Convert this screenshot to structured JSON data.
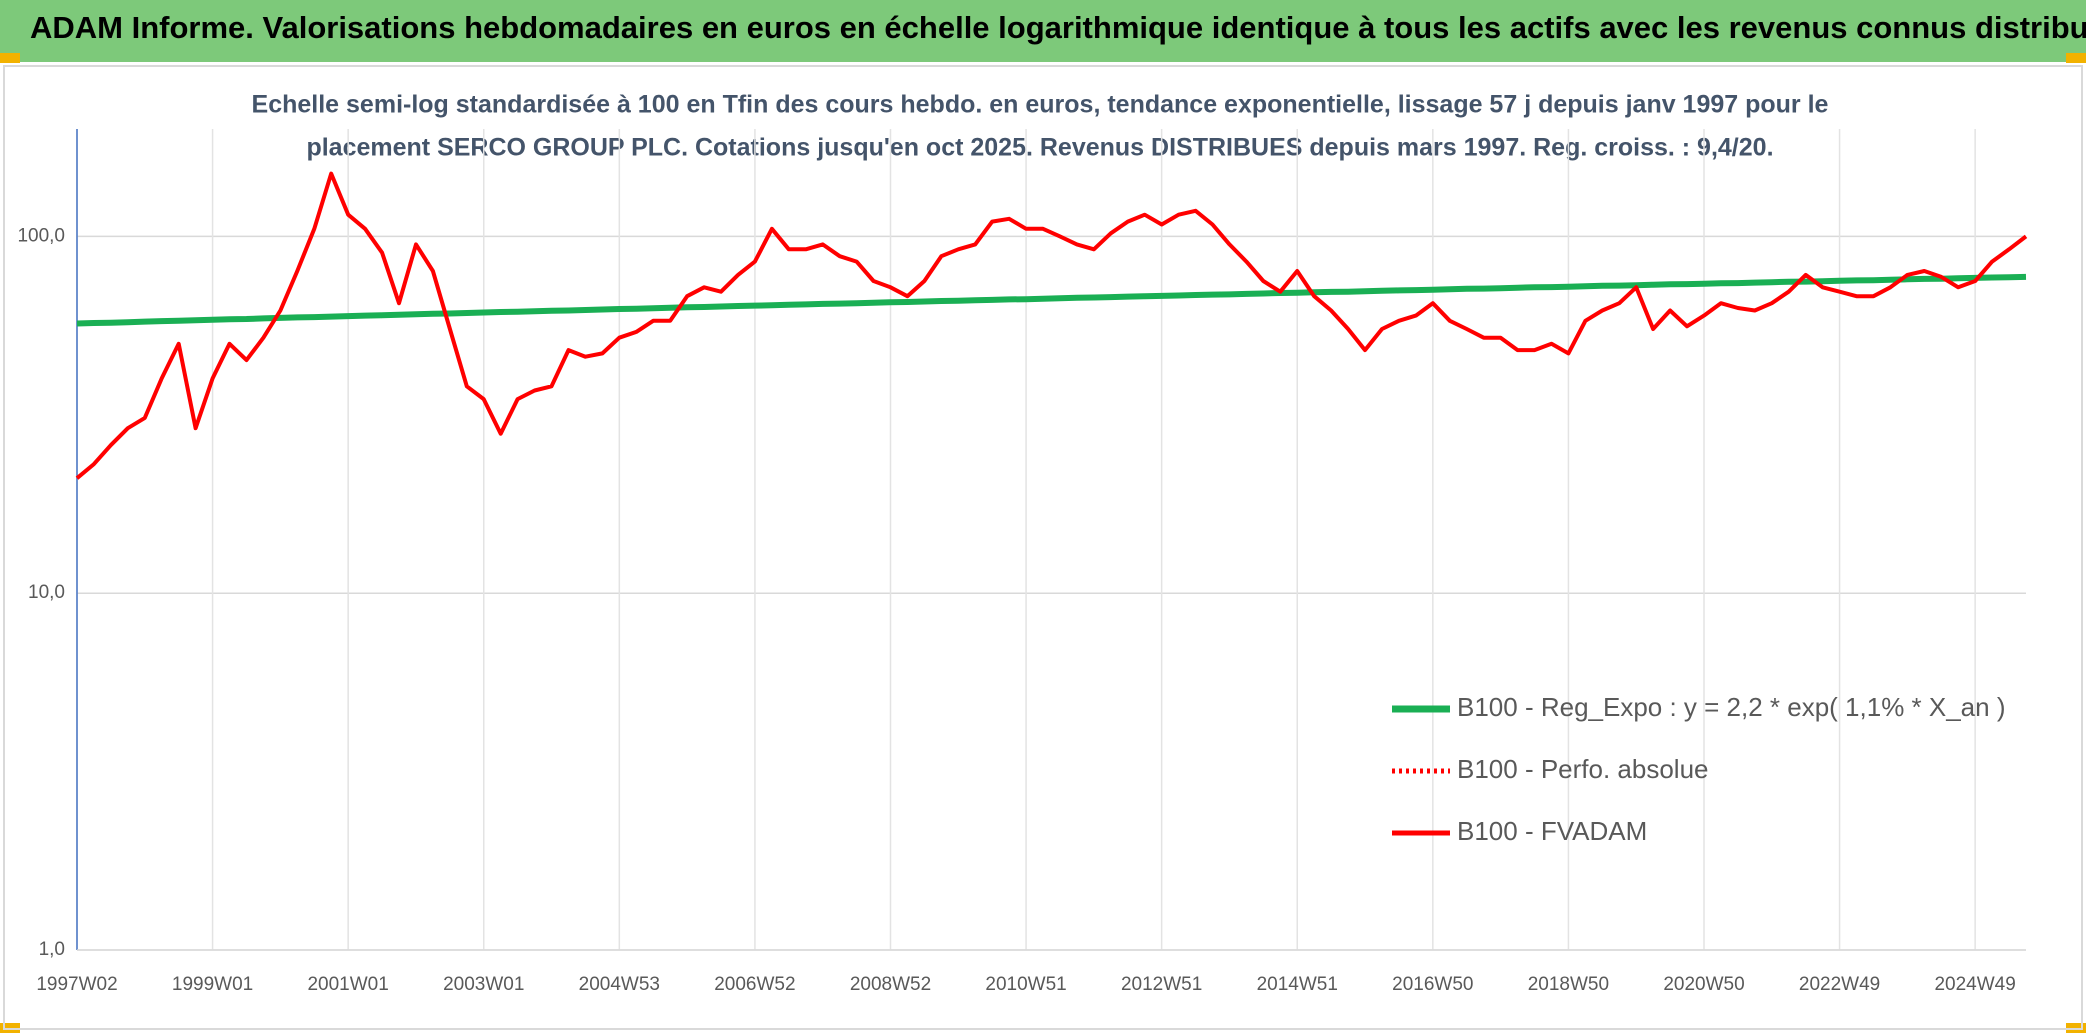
{
  "chart_data": {
    "type": "line",
    "title": "ADAM Informe. Valorisations hebdomadaires en euros en échelle logarithmique identique à tous les actifs avec les revenus connus distribués",
    "subtitle": [
      "Echelle semi-log standardisée à 100 en Tfin des cours hebdo. en euros, tendance exponentielle, lissage 57 j depuis janv 1997 pour le",
      "placement SERCO GROUP PLC. Cotations jusqu'en oct 2025. Revenus DISTRIBUES depuis mars 1997. Reg. croiss. : 9,4/20."
    ],
    "log_scale": true,
    "grid": true,
    "ylim": [
      1,
      200
    ],
    "yticks": [
      {
        "value": 1,
        "label": "1,0"
      },
      {
        "value": 10,
        "label": "10,0"
      },
      {
        "value": 100,
        "label": "100,0"
      }
    ],
    "categories": [
      "1997W02",
      null,
      null,
      null,
      null,
      null,
      null,
      null,
      "1999W01",
      null,
      null,
      null,
      null,
      null,
      null,
      null,
      "2001W01",
      null,
      null,
      null,
      null,
      null,
      null,
      null,
      "2003W01",
      null,
      null,
      null,
      null,
      null,
      null,
      null,
      "2004W53",
      null,
      null,
      null,
      null,
      null,
      null,
      null,
      "2006W52",
      null,
      null,
      null,
      null,
      null,
      null,
      null,
      "2008W52",
      null,
      null,
      null,
      null,
      null,
      null,
      null,
      "2010W51",
      null,
      null,
      null,
      null,
      null,
      null,
      null,
      "2012W51",
      null,
      null,
      null,
      null,
      null,
      null,
      null,
      "2014W51",
      null,
      null,
      null,
      null,
      null,
      null,
      null,
      "2016W50",
      null,
      null,
      null,
      null,
      null,
      null,
      null,
      "2018W50",
      null,
      null,
      null,
      null,
      null,
      null,
      null,
      "2020W50",
      null,
      null,
      null,
      null,
      null,
      null,
      null,
      "2022W49",
      null,
      null,
      null,
      null,
      null,
      null,
      null,
      "2024W49",
      null,
      null,
      null
    ],
    "series": [
      {
        "name": "B100 - Reg_Expo : y = 2,2 * exp( 1,1% *  X_an )",
        "color": "#1aaf54",
        "style": "solid",
        "width": 6,
        "values": [
          57.0,
          57.2,
          57.3,
          57.5,
          57.7,
          57.9,
          58.0,
          58.2,
          58.4,
          58.6,
          58.7,
          58.9,
          59.1,
          59.3,
          59.4,
          59.6,
          59.8,
          60.0,
          60.1,
          60.3,
          60.5,
          60.7,
          60.8,
          61.0,
          61.2,
          61.4,
          61.5,
          61.7,
          61.9,
          62.0,
          62.2,
          62.4,
          62.6,
          62.7,
          62.9,
          63.1,
          63.3,
          63.4,
          63.6,
          63.8,
          64.0,
          64.1,
          64.3,
          64.5,
          64.7,
          64.8,
          65.0,
          65.2,
          65.4,
          65.5,
          65.7,
          65.9,
          66.0,
          66.2,
          66.4,
          66.6,
          66.7,
          66.9,
          67.1,
          67.3,
          67.4,
          67.6,
          67.8,
          68.0,
          68.1,
          68.3,
          68.5,
          68.7,
          68.8,
          69.0,
          69.2,
          69.4,
          69.5,
          69.7,
          69.9,
          70.0,
          70.2,
          70.4,
          70.6,
          70.7,
          70.9,
          71.1,
          71.3,
          71.4,
          71.6,
          71.8,
          72.0,
          72.1,
          72.3,
          72.5,
          72.7,
          72.8,
          73.0,
          73.2,
          73.4,
          73.5,
          73.7,
          73.9,
          74.0,
          74.2,
          74.4,
          74.6,
          74.7,
          74.9,
          75.1,
          75.3,
          75.4,
          75.6,
          75.8,
          76.0,
          76.1,
          76.3,
          76.5,
          76.7,
          76.8,
          77.0
        ]
      },
      {
        "name": "B100 - Perfo. absolue",
        "color": "#ff0000",
        "style": "dotted",
        "width": 4,
        "values": [
          null,
          null,
          null,
          null,
          null,
          null,
          null,
          null,
          null,
          null,
          null,
          null,
          null,
          null,
          null,
          null,
          null,
          null,
          null,
          null,
          null,
          null,
          null,
          null,
          null,
          null,
          null,
          null,
          null,
          null,
          null,
          null,
          null,
          null,
          null,
          null,
          null,
          null,
          null,
          null,
          null,
          null,
          null,
          null,
          null,
          null,
          null,
          null,
          null,
          null,
          null,
          null,
          null,
          null,
          null,
          null,
          null,
          null,
          null,
          null,
          null,
          null,
          null,
          null,
          null,
          null,
          null,
          null,
          null,
          null,
          null,
          null,
          null,
          null,
          null,
          null,
          null,
          null,
          null,
          null,
          null,
          null,
          null,
          null,
          null,
          null,
          null,
          null,
          null,
          null,
          null,
          null,
          null,
          null,
          null,
          null,
          null,
          null,
          null,
          null,
          null,
          null,
          null,
          null,
          null,
          null,
          null,
          null,
          null,
          null,
          null,
          null,
          null,
          null,
          null,
          null
        ]
      },
      {
        "name": "B100 - FVADAM",
        "color": "#ff0000",
        "style": "solid",
        "width": 4,
        "values": [
          21,
          23,
          26,
          29,
          31,
          40,
          50,
          29,
          40,
          50,
          45,
          52,
          62,
          80,
          105,
          150,
          115,
          105,
          90,
          65,
          95,
          80,
          55,
          38,
          35,
          28,
          35,
          37,
          38,
          48,
          46,
          47,
          52,
          54,
          58,
          58,
          68,
          72,
          70,
          78,
          85,
          105,
          92,
          92,
          95,
          88,
          85,
          75,
          72,
          68,
          75,
          88,
          92,
          95,
          110,
          112,
          105,
          105,
          100,
          95,
          92,
          102,
          110,
          115,
          108,
          115,
          118,
          108,
          95,
          85,
          75,
          70,
          80,
          68,
          62,
          55,
          48,
          55,
          58,
          60,
          65,
          58,
          55,
          52,
          52,
          48,
          48,
          50,
          47,
          58,
          62,
          65,
          72,
          55,
          62,
          56,
          60,
          65,
          63,
          62,
          65,
          70,
          78,
          72,
          70,
          68,
          68,
          72,
          78,
          80,
          77,
          72,
          75,
          85,
          92,
          100
        ]
      }
    ]
  }
}
